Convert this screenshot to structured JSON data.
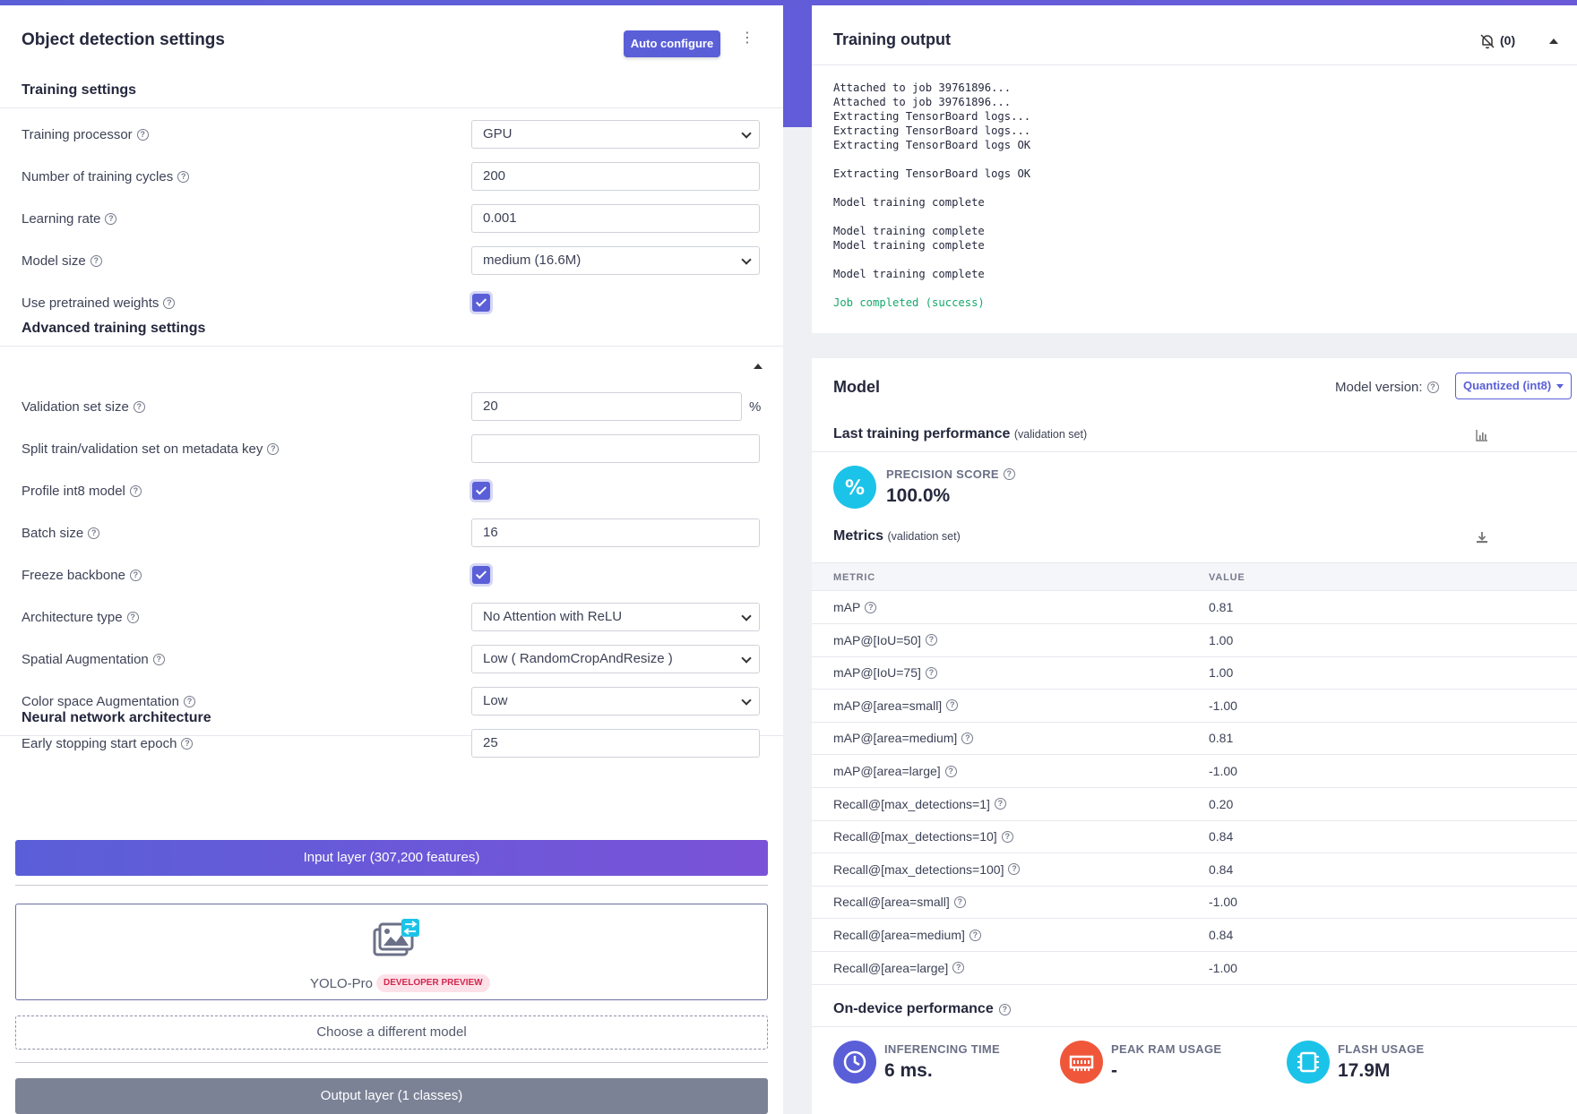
{
  "left": {
    "title": "Object detection settings",
    "auto_configure": "Auto configure",
    "training_settings_title": "Training settings",
    "training_settings": [
      {
        "label": "Training processor",
        "value": "GPU",
        "type": "select"
      },
      {
        "label": "Number of training cycles",
        "value": "200",
        "type": "input"
      },
      {
        "label": "Learning rate",
        "value": "0.001",
        "type": "input"
      },
      {
        "label": "Model size",
        "value": "medium (16.6M)",
        "type": "select"
      },
      {
        "label": "Use pretrained weights",
        "checked": true,
        "type": "checkbox"
      }
    ],
    "advanced_title": "Advanced training settings",
    "advanced": [
      {
        "label": "Validation set size",
        "value": "20",
        "type": "input",
        "suffix": "%"
      },
      {
        "label": "Split train/validation set on metadata key",
        "value": "",
        "type": "input"
      },
      {
        "label": "Profile int8 model",
        "checked": true,
        "type": "checkbox"
      },
      {
        "label": "Batch size",
        "value": "16",
        "type": "input"
      },
      {
        "label": "Freeze backbone",
        "checked": true,
        "type": "checkbox"
      },
      {
        "label": "Architecture type",
        "value": "No Attention with ReLU",
        "type": "select"
      },
      {
        "label": "Spatial Augmentation",
        "value": "Low ( RandomCropAndResize )",
        "type": "select"
      },
      {
        "label": "Color space Augmentation",
        "value": "Low",
        "type": "select"
      },
      {
        "label": "Early stopping start epoch",
        "value": "25",
        "type": "input"
      }
    ],
    "nn_title": "Neural network architecture",
    "input_layer": "Input layer (307,200 features)",
    "model_name": "YOLO-Pro",
    "model_badge": "DEVELOPER PREVIEW",
    "choose_model": "Choose a different model",
    "output_layer": "Output layer (1 classes)"
  },
  "training_output": {
    "title": "Training output",
    "notifications": "(0)",
    "log": [
      {
        "text": "Attached to job 39761896...",
        "ok": false
      },
      {
        "text": "Attached to job 39761896...",
        "ok": false
      },
      {
        "text": "Extracting TensorBoard logs...",
        "ok": false
      },
      {
        "text": "Extracting TensorBoard logs...",
        "ok": false
      },
      {
        "text": "Extracting TensorBoard logs OK",
        "ok": false
      },
      {
        "text": "",
        "ok": false
      },
      {
        "text": "Extracting TensorBoard logs OK",
        "ok": false
      },
      {
        "text": "",
        "ok": false
      },
      {
        "text": "Model training complete",
        "ok": false
      },
      {
        "text": "",
        "ok": false
      },
      {
        "text": "Model training complete",
        "ok": false
      },
      {
        "text": "Model training complete",
        "ok": false
      },
      {
        "text": "",
        "ok": false
      },
      {
        "text": "Model training complete",
        "ok": false
      },
      {
        "text": "",
        "ok": false
      },
      {
        "text": "Job completed (success)",
        "ok": true
      }
    ]
  },
  "model": {
    "title": "Model",
    "version_label": "Model version:",
    "version_value": "Quantized (int8)",
    "last_perf_title": "Last training performance",
    "last_perf_sub": "(validation set)",
    "precision_label": "PRECISION SCORE",
    "precision_value": "100.0%",
    "metrics_title": "Metrics",
    "metrics_sub": "(validation set)",
    "col_metric": "METRIC",
    "col_value": "VALUE",
    "metrics": [
      {
        "name": "mAP",
        "value": "0.81"
      },
      {
        "name": "mAP@[IoU=50]",
        "value": "1.00"
      },
      {
        "name": "mAP@[IoU=75]",
        "value": "1.00"
      },
      {
        "name": "mAP@[area=small]",
        "value": "-1.00"
      },
      {
        "name": "mAP@[area=medium]",
        "value": "0.81"
      },
      {
        "name": "mAP@[area=large]",
        "value": "-1.00"
      },
      {
        "name": "Recall@[max_detections=1]",
        "value": "0.20"
      },
      {
        "name": "Recall@[max_detections=10]",
        "value": "0.84"
      },
      {
        "name": "Recall@[max_detections=100]",
        "value": "0.84"
      },
      {
        "name": "Recall@[area=small]",
        "value": "-1.00"
      },
      {
        "name": "Recall@[area=medium]",
        "value": "0.84"
      },
      {
        "name": "Recall@[area=large]",
        "value": "-1.00"
      }
    ],
    "ondevice_title": "On-device performance",
    "ondevice": [
      {
        "label": "INFERENCING TIME",
        "value": "6 ms.",
        "color": "#5a5fd8"
      },
      {
        "label": "PEAK RAM USAGE",
        "value": "-",
        "color": "#f0573a"
      },
      {
        "label": "FLASH USAGE",
        "value": "17.9M",
        "color": "#1cc3e8"
      }
    ]
  },
  "colors": {
    "accent": "#5a5fd8",
    "success": "#15a86b",
    "precision": "#1cc3e8"
  }
}
